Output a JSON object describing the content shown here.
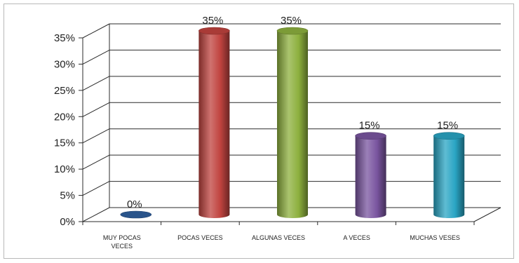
{
  "chart_data": {
    "type": "bar",
    "title": "",
    "xlabel": "",
    "ylabel": "",
    "categories": [
      "MUY POCAS VECES",
      "POCAS VECES",
      "ALGUNAS VECES",
      "A VECES",
      "MUCHAS VESES"
    ],
    "category_lines": [
      [
        "MUY POCAS",
        "VECES"
      ],
      [
        "POCAS VECES"
      ],
      [
        "ALGUNAS VECES"
      ],
      [
        "A VECES"
      ],
      [
        "MUCHAS VESES"
      ]
    ],
    "values": [
      0,
      35,
      35,
      15,
      15
    ],
    "data_labels": [
      "0%",
      "35%",
      "35%",
      "15%",
      "15%"
    ],
    "colors": [
      "#2f5f9e",
      "#c0433f",
      "#8db03e",
      "#7a55a0",
      "#2aa5c4"
    ],
    "ylim": [
      0,
      35
    ],
    "yticks": [
      0,
      5,
      10,
      15,
      20,
      25,
      30,
      35
    ],
    "ytick_labels": [
      "0%",
      "5%",
      "10%",
      "15%",
      "20%",
      "25%",
      "30%",
      "35%"
    ],
    "grid": true,
    "legend": "none"
  }
}
